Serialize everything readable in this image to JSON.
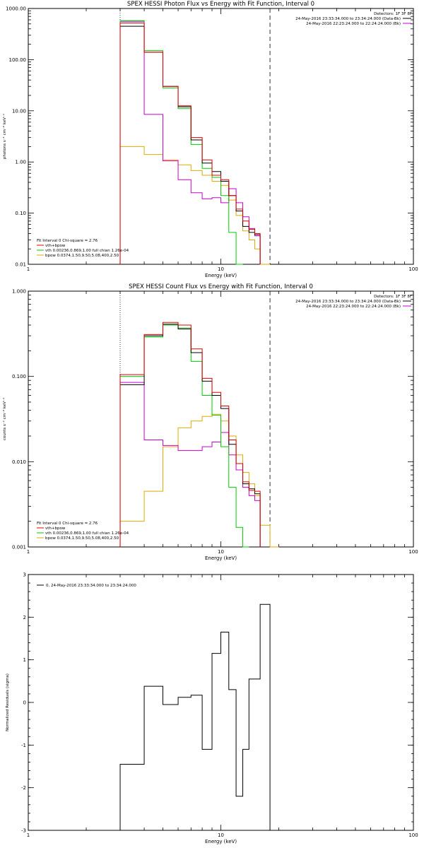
{
  "colors": {
    "data": "#000000",
    "total": "#dd0000",
    "vth": "#00cc00",
    "bpow": "#ddaa00",
    "bk": "#cc00cc"
  },
  "chart_data": [
    {
      "type": "line",
      "title": "SPEX HESSI Photon Flux vs Energy with Fit Function, Interval 0",
      "xlabel": "Energy (keV)",
      "ylabel": "photons s⁻¹ cm⁻² keV⁻¹",
      "x_scale": "log",
      "y_scale": "log",
      "xlim": [
        1,
        100
      ],
      "ylim": [
        0.01,
        1000
      ],
      "x_ticks": [
        {
          "v": 1,
          "label": "1"
        },
        {
          "v": 10,
          "label": "10"
        },
        {
          "v": 100,
          "label": "100"
        }
      ],
      "y_ticks": [
        {
          "v": 0.01,
          "label": "0.01"
        },
        {
          "v": 0.1,
          "label": "0.10"
        },
        {
          "v": 1,
          "label": "1.00"
        },
        {
          "v": 10,
          "label": "10.00"
        },
        {
          "v": 100,
          "label": "100.00"
        },
        {
          "v": 1000,
          "label": "1000.00"
        }
      ],
      "bin_edges": [
        3.0,
        4.0,
        5.0,
        6.0,
        7.0,
        8.0,
        9.0,
        10.0,
        11.0,
        12.0,
        13.0,
        14.0,
        15.0,
        16.0,
        18.0,
        20.0
      ],
      "vlines": [
        {
          "x": 3.0,
          "style": "dotted"
        },
        {
          "x": 18.0,
          "style": "dashed"
        }
      ],
      "legend_top_right": {
        "detectors": "Detectors: 1F 3F 8F",
        "lines": [
          {
            "text": "24-May-2016 23:33:34.000 to 23:34:24.000 (Data-Bk)",
            "color": "#000000"
          },
          {
            "text": "24-May-2016 22:23:24.000 to 22:24:24.000 (Bk)",
            "color": "#cc00cc"
          }
        ]
      },
      "legend_bottom_left": {
        "header": "Fit Interval 0   Chi-square = 2.76",
        "items": [
          {
            "text": "vth+bpow",
            "color": "#dd0000"
          },
          {
            "text": "vth 0.00236,0.869,1.00  full chian 1.26e-04",
            "color": "#00cc00"
          },
          {
            "text": "bpow 0.0374,1.50,9.50,5.08,400,2.50",
            "color": "#ddaa00"
          }
        ]
      },
      "series": [
        {
          "name": "Data-Bk",
          "color": "#000000",
          "values": [
            450,
            140,
            30,
            12,
            2.7,
            0.95,
            0.65,
            0.42,
            0.22,
            0.11,
            0.055,
            0.042,
            0.038,
            null,
            null
          ]
        },
        {
          "name": "vth+bpow",
          "color": "#dd0000",
          "values": [
            520,
            140,
            30,
            12.5,
            3.0,
            1.1,
            0.55,
            0.45,
            0.22,
            0.12,
            0.07,
            0.048,
            0.04,
            null,
            null
          ]
        },
        {
          "name": "vth",
          "color": "#00cc00",
          "values": [
            580,
            150,
            28,
            11,
            2.2,
            0.75,
            0.5,
            0.22,
            0.042,
            0.01,
            null,
            null,
            null,
            null,
            null
          ]
        },
        {
          "name": "bpow",
          "color": "#ddaa00",
          "values": [
            2.0,
            1.4,
            1.1,
            0.88,
            0.68,
            0.55,
            0.42,
            0.35,
            0.18,
            0.09,
            0.045,
            0.03,
            0.02,
            0.01,
            null
          ]
        },
        {
          "name": "Bk",
          "color": "#cc00cc",
          "values": [
            560,
            8.5,
            1.05,
            0.45,
            0.25,
            0.19,
            0.2,
            0.16,
            0.3,
            0.16,
            0.085,
            0.05,
            0.036,
            null,
            null
          ]
        }
      ]
    },
    {
      "type": "line",
      "title": "SPEX HESSI Count Flux vs Energy with Fit Function, Interval 0",
      "xlabel": "Energy (keV)",
      "ylabel": "counts s⁻¹ cm⁻² keV⁻¹",
      "x_scale": "log",
      "y_scale": "log",
      "xlim": [
        1,
        100
      ],
      "ylim": [
        0.001,
        1
      ],
      "x_ticks": [
        {
          "v": 1,
          "label": "1"
        },
        {
          "v": 10,
          "label": "10"
        },
        {
          "v": 100,
          "label": "100"
        }
      ],
      "y_ticks": [
        {
          "v": 0.001,
          "label": "0.001"
        },
        {
          "v": 0.01,
          "label": "0.010"
        },
        {
          "v": 0.1,
          "label": "0.100"
        },
        {
          "v": 1,
          "label": "1.000"
        }
      ],
      "bin_edges": [
        3.0,
        4.0,
        5.0,
        6.0,
        7.0,
        8.0,
        9.0,
        10.0,
        11.0,
        12.0,
        13.0,
        14.0,
        15.0,
        16.0,
        18.0,
        20.0
      ],
      "vlines": [
        {
          "x": 3.0,
          "style": "dotted"
        },
        {
          "x": 18.0,
          "style": "dashed"
        }
      ],
      "legend_top_right": {
        "detectors": "Detectors: 1F 3F 8F",
        "lines": [
          {
            "text": "24-May-2016 23:33:34.000 to 23:34:24.000 (Data-Bk)",
            "color": "#000000"
          },
          {
            "text": "24-May-2016 22:23:24.000 to 22:24:24.000 (Bk)",
            "color": "#cc00cc"
          }
        ]
      },
      "legend_bottom_left": {
        "header": "Fit Interval 0   Chi-square = 2.76",
        "items": [
          {
            "text": "vth+bpow",
            "color": "#dd0000"
          },
          {
            "text": "vth 0.00236,0.869,1.00  full chian 1.26e-04",
            "color": "#00cc00"
          },
          {
            "text": "bpow 0.0374,1.50,9.50,5.08,400,2.50",
            "color": "#ddaa00"
          }
        ]
      },
      "series": [
        {
          "name": "Data-Bk",
          "color": "#000000",
          "values": [
            0.08,
            0.3,
            0.41,
            0.36,
            0.19,
            0.088,
            0.06,
            0.042,
            0.016,
            0.0095,
            0.0055,
            0.0048,
            0.0042,
            null,
            null
          ]
        },
        {
          "name": "vth+bpow",
          "color": "#dd0000",
          "values": [
            0.105,
            0.31,
            0.43,
            0.4,
            0.21,
            0.095,
            0.065,
            0.045,
            0.018,
            0.0095,
            0.0058,
            0.0046,
            0.0045,
            null,
            null
          ]
        },
        {
          "name": "vth",
          "color": "#00cc00",
          "values": [
            0.1,
            0.29,
            0.4,
            0.37,
            0.15,
            0.06,
            0.035,
            0.015,
            0.005,
            0.0017,
            0.001,
            null,
            null,
            null,
            null
          ]
        },
        {
          "name": "bpow",
          "color": "#ddaa00",
          "values": [
            0.002,
            0.0045,
            0.015,
            0.025,
            0.03,
            0.034,
            0.036,
            0.03,
            0.02,
            0.012,
            0.0075,
            0.0055,
            0.004,
            0.0018,
            0.001
          ]
        },
        {
          "name": "Bk",
          "color": "#cc00cc",
          "values": [
            0.085,
            0.018,
            0.0155,
            0.0135,
            0.0135,
            0.015,
            0.017,
            0.022,
            0.012,
            0.008,
            0.005,
            0.004,
            0.0035,
            null,
            null
          ]
        }
      ]
    },
    {
      "type": "line",
      "title": "",
      "xlabel": "Energy (keV)",
      "ylabel": "Normalized Residuals (sigma)",
      "x_scale": "log",
      "y_scale": "linear",
      "xlim": [
        1,
        100
      ],
      "ylim": [
        -3,
        3
      ],
      "x_ticks": [
        {
          "v": 1,
          "label": "1"
        },
        {
          "v": 10,
          "label": "10"
        },
        {
          "v": 100,
          "label": "100"
        }
      ],
      "y_ticks": [
        {
          "v": -3,
          "label": "-3"
        },
        {
          "v": -2,
          "label": "-2"
        },
        {
          "v": -1,
          "label": "-1"
        },
        {
          "v": 0,
          "label": "0"
        },
        {
          "v": 1,
          "label": "1"
        },
        {
          "v": 2,
          "label": "2"
        },
        {
          "v": 3,
          "label": "3"
        }
      ],
      "bin_edges": [
        3.0,
        4.0,
        5.0,
        6.0,
        6.5,
        7.0,
        8.0,
        9.0,
        10.0,
        11.0,
        12.0,
        13.0,
        14.0,
        15.0,
        16.0,
        18.0
      ],
      "legend": {
        "text": "0, 24-May-2016 23:33:34.000 to 23:34:24.000",
        "color": "#000000"
      },
      "series": [
        {
          "name": "",
          "color": "#000000",
          "values": [
            -1.45,
            0.38,
            -0.05,
            0.12,
            0.12,
            0.17,
            -1.1,
            1.15,
            1.65,
            0.3,
            -2.2,
            -1.1,
            0.55,
            0.55,
            2.3
          ]
        }
      ]
    }
  ]
}
